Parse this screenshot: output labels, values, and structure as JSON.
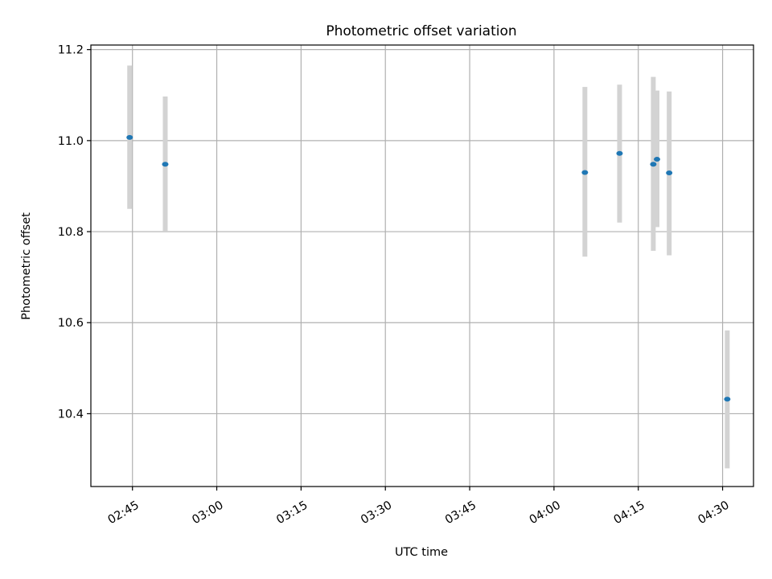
{
  "chart_data": {
    "type": "scatter",
    "title": "Photometric offset variation",
    "xlabel": "UTC time",
    "ylabel": "Photometric offset",
    "x_tick_labels": [
      "02:45",
      "03:00",
      "03:15",
      "03:30",
      "03:45",
      "04:00",
      "04:15",
      "04:30"
    ],
    "y_tick_labels": [
      "10.4",
      "10.6",
      "10.8",
      "11.0",
      "11.2"
    ],
    "x_ticks_minutes_utc": [
      165,
      180,
      195,
      210,
      225,
      240,
      255,
      270
    ],
    "y_ticks": [
      10.4,
      10.6,
      10.8,
      11.0,
      11.2
    ],
    "xlim_minutes_utc": [
      157.6,
      275.5
    ],
    "ylim": [
      10.24,
      11.21
    ],
    "grid": true,
    "series": [
      {
        "marker_color": "#1f77b4",
        "errorbar_color": "#d3d3d3",
        "points": [
          {
            "time": "02:44:30",
            "t_min": 164.5,
            "y": 11.007,
            "ylow": 10.85,
            "yhigh": 11.165
          },
          {
            "time": "02:50:50",
            "t_min": 170.83,
            "y": 10.948,
            "ylow": 10.8,
            "yhigh": 11.097
          },
          {
            "time": "04:05:30",
            "t_min": 245.5,
            "y": 10.93,
            "ylow": 10.745,
            "yhigh": 11.118
          },
          {
            "time": "04:11:40",
            "t_min": 251.67,
            "y": 10.972,
            "ylow": 10.82,
            "yhigh": 11.123
          },
          {
            "time": "04:17:40",
            "t_min": 257.67,
            "y": 10.948,
            "ylow": 10.758,
            "yhigh": 11.14
          },
          {
            "time": "04:18:20",
            "t_min": 258.33,
            "y": 10.959,
            "ylow": 10.81,
            "yhigh": 11.11
          },
          {
            "time": "04:20:30",
            "t_min": 260.5,
            "y": 10.929,
            "ylow": 10.748,
            "yhigh": 11.108
          },
          {
            "time": "04:30:50",
            "t_min": 270.83,
            "y": 10.432,
            "ylow": 10.28,
            "yhigh": 10.583
          }
        ]
      }
    ]
  }
}
